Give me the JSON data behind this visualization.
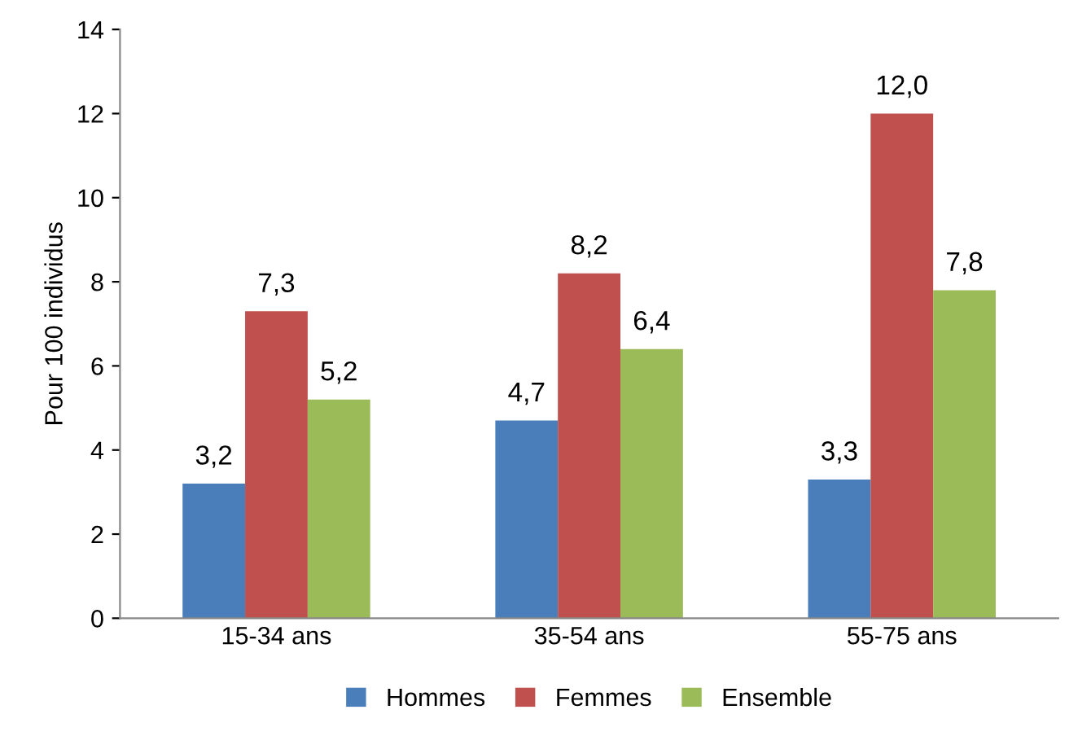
{
  "chart_data": {
    "type": "bar",
    "ylabel": "Pour 100 individus",
    "categories": [
      "15-34 ans",
      "35-54 ans",
      "55-75 ans"
    ],
    "series": [
      {
        "name": "Hommes",
        "color": "#4a7ebb",
        "values": [
          3.2,
          4.7,
          3.3
        ],
        "value_labels": [
          "3,2",
          "4,7",
          "3,3"
        ]
      },
      {
        "name": "Femmes",
        "color": "#c0504d",
        "values": [
          7.3,
          8.2,
          12.0
        ],
        "value_labels": [
          "7,3",
          "8,2",
          "12,0"
        ]
      },
      {
        "name": "Ensemble",
        "color": "#9bbb59",
        "values": [
          5.2,
          6.4,
          7.8
        ],
        "value_labels": [
          "5,2",
          "6,4",
          "7,8"
        ]
      }
    ],
    "ylim": [
      0,
      14
    ],
    "yticks": [
      0,
      2,
      4,
      6,
      8,
      10,
      12,
      14
    ],
    "grid": false,
    "legend": "bottom"
  }
}
